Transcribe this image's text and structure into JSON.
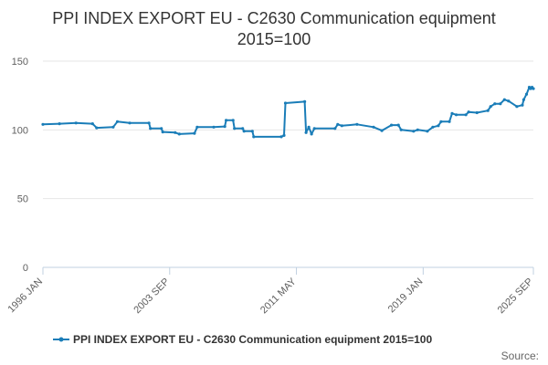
{
  "chart_data": {
    "type": "line",
    "title_line1": "PPI INDEX EXPORT EU - C2630 Communication equipment",
    "title_line2": "2015=100",
    "xlabel": "",
    "ylabel": "",
    "ylim": [
      0,
      150
    ],
    "yticks": [
      "0",
      "50",
      "100",
      "150"
    ],
    "xticks": [
      "1996 JAN",
      "2003 SEP",
      "2011 MAY",
      "2019 JAN",
      "2025 SEP"
    ],
    "xlim": [
      "1996 JAN",
      "2025 SEP"
    ],
    "grid": true,
    "legend_position": "bottom",
    "series": [
      {
        "name": "PPI INDEX EXPORT EU - C2630 Communication equipment 2015=100",
        "color": "#1a7db8",
        "marker": "dot",
        "points": [
          [
            "1996 JAN",
            104
          ],
          [
            "1997 JAN",
            104.5
          ],
          [
            "1998 JAN",
            105
          ],
          [
            "1999 JAN",
            104.5
          ],
          [
            "1999 APR",
            101.5
          ],
          [
            "2000 APR",
            102
          ],
          [
            "2000 JUL",
            106
          ],
          [
            "2001 APR",
            105
          ],
          [
            "2002 JUN",
            105
          ],
          [
            "2002 JUL",
            101
          ],
          [
            "2003 MAR",
            101
          ],
          [
            "2003 APR",
            98.5
          ],
          [
            "2004 JAN",
            98
          ],
          [
            "2004 APR",
            97
          ],
          [
            "2005 MAR",
            97.5
          ],
          [
            "2005 MAY",
            102
          ],
          [
            "2006 MAY",
            102
          ],
          [
            "2007 JAN",
            102.5
          ],
          [
            "2007 FEB",
            107
          ],
          [
            "2007 JUL",
            107
          ],
          [
            "2007 AUG",
            101
          ],
          [
            "2008 FEB",
            101
          ],
          [
            "2008 MAR",
            99
          ],
          [
            "2008 SEP",
            99
          ],
          [
            "2008 OCT",
            95
          ],
          [
            "2010 JUN",
            95
          ],
          [
            "2010 AUG",
            96
          ],
          [
            "2010 SEP",
            119.5
          ],
          [
            "2011 NOV",
            120.5
          ],
          [
            "2011 DEC",
            98
          ],
          [
            "2012 FEB",
            102
          ],
          [
            "2012 APR",
            97
          ],
          [
            "2012 JUN",
            101
          ],
          [
            "2013 SEP",
            101
          ],
          [
            "2013 NOV",
            104
          ],
          [
            "2014 FEB",
            103
          ],
          [
            "2015 JAN",
            104
          ],
          [
            "2016 JAN",
            102
          ],
          [
            "2016 JUL",
            99.5
          ],
          [
            "2017 FEB",
            103.5
          ],
          [
            "2017 JUL",
            103.5
          ],
          [
            "2017 SEP",
            100
          ],
          [
            "2018 JUN",
            99
          ],
          [
            "2018 SEP",
            100
          ],
          [
            "2019 APR",
            99
          ],
          [
            "2019 AUG",
            102
          ],
          [
            "2019 DEC",
            103
          ],
          [
            "2020 FEB",
            106
          ],
          [
            "2020 AUG",
            106
          ],
          [
            "2020 OCT",
            112
          ],
          [
            "2021 JAN",
            111
          ],
          [
            "2021 AUG",
            111
          ],
          [
            "2021 OCT",
            113
          ],
          [
            "2022 APR",
            112.5
          ],
          [
            "2022 DEC",
            114
          ],
          [
            "2023 FEB",
            117
          ],
          [
            "2023 MAY",
            119
          ],
          [
            "2023 SEP",
            119
          ],
          [
            "2023 DEC",
            122
          ],
          [
            "2024 MAR",
            121
          ],
          [
            "2024 SEP",
            117
          ],
          [
            "2025 JAN",
            118
          ],
          [
            "2025 FEB",
            122
          ],
          [
            "2025 APR",
            126
          ],
          [
            "2025 JUN",
            131
          ],
          [
            "2025 JUL",
            130
          ],
          [
            "2025 AUG",
            131
          ],
          [
            "2025 SEP",
            130
          ]
        ]
      }
    ],
    "source_label": "Source:"
  }
}
